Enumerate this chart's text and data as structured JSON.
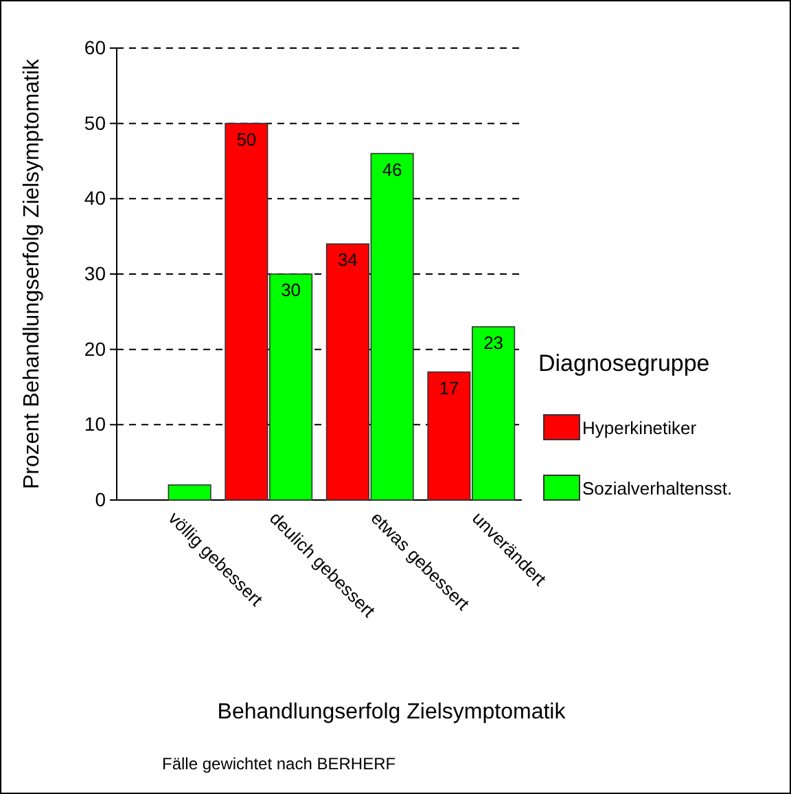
{
  "chart_data": {
    "type": "bar",
    "xlabel": "Behandlungserfolg Zielsymptomatik",
    "ylabel": "Prozent Behandlungserfolg Zielsymptomatik",
    "legend_title": "Diagnosegruppe",
    "categories": [
      "völlig gebessert",
      "deulich gebessert",
      "etwas gebessert",
      "unverändert"
    ],
    "series": [
      {
        "name": "Hyperkinetiker",
        "color": "#ff0000",
        "values": [
          null,
          50,
          34,
          17
        ],
        "value_labels": [
          null,
          "50",
          "34",
          "17"
        ]
      },
      {
        "name": "Sozialverhaltensst.",
        "color": "#00ff00",
        "values": [
          2,
          30,
          46,
          23
        ],
        "value_labels": [
          null,
          "30",
          "46",
          "23"
        ]
      }
    ],
    "ylim": [
      0,
      60
    ],
    "yticks": [
      0,
      10,
      20,
      30,
      40,
      50,
      60
    ],
    "grid": "y",
    "legend": "right",
    "annotations": [
      "Fälle gewichtet nach BERHERF"
    ]
  }
}
